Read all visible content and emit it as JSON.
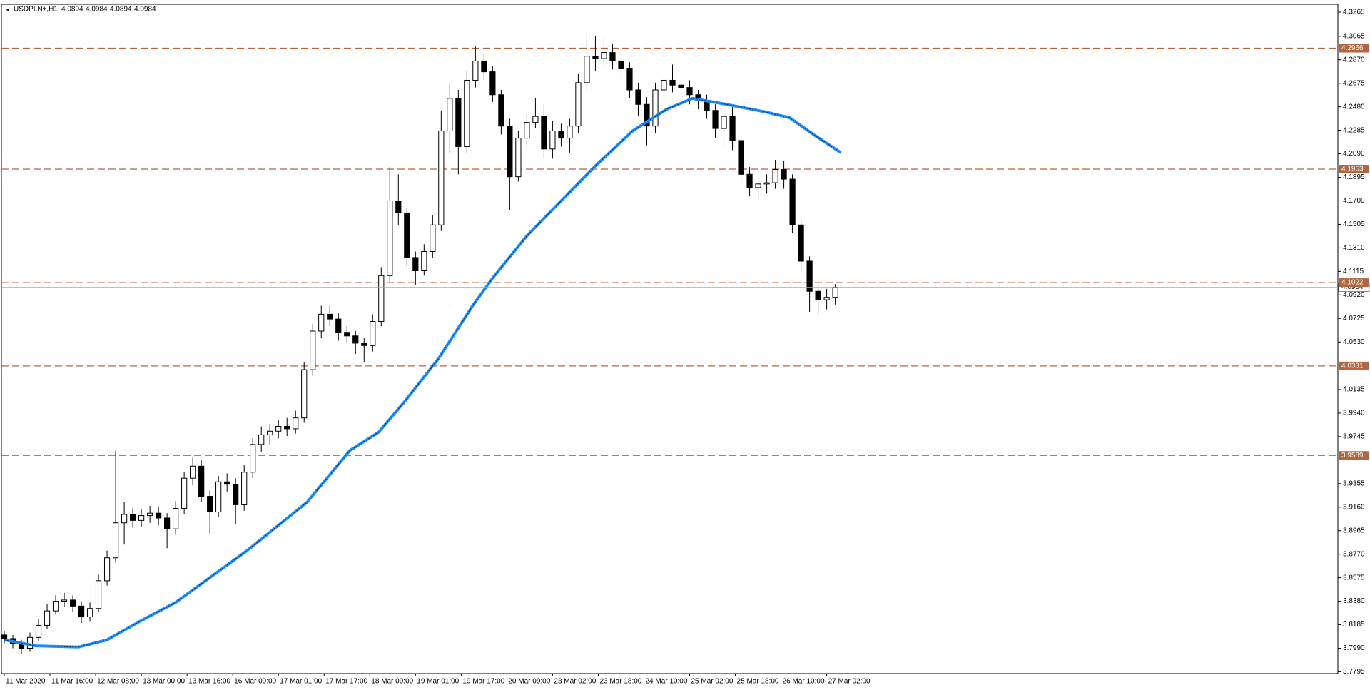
{
  "chart_data": {
    "type": "candlestick",
    "symbol": "USDPLN+,H1",
    "header_ohlc": [
      4.0894,
      4.0984,
      4.0894,
      4.0984
    ],
    "xlim": [
      -1,
      467
    ],
    "ylim": [
      3.778,
      4.333
    ],
    "xticks": [
      {
        "value": 0,
        "label": "11 Mar 2020"
      },
      {
        "value": 16,
        "label": "11 Mar 16:00"
      },
      {
        "value": 32,
        "label": "12 Mar 08:00"
      },
      {
        "value": 48,
        "label": "13 Mar 00:00"
      },
      {
        "value": 64,
        "label": "13 Mar 16:00"
      },
      {
        "value": 80,
        "label": "16 Mar 09:00"
      },
      {
        "value": 96,
        "label": "17 Mar 01:00"
      },
      {
        "value": 112,
        "label": "17 Mar 17:00"
      },
      {
        "value": 128,
        "label": "18 Mar 09:00"
      },
      {
        "value": 144,
        "label": "19 Mar 01:00"
      },
      {
        "value": 160,
        "label": "19 Mar 17:00"
      },
      {
        "value": 176,
        "label": "20 Mar 09:00"
      },
      {
        "value": 192,
        "label": "23 Mar 02:00"
      },
      {
        "value": 208,
        "label": "23 Mar 18:00"
      },
      {
        "value": 224,
        "label": "24 Mar 10:00"
      },
      {
        "value": 240,
        "label": "25 Mar 02:00"
      },
      {
        "value": 256,
        "label": "25 Mar 18:00"
      },
      {
        "value": 272,
        "label": "26 Mar 10:00"
      },
      {
        "value": 288,
        "label": "27 Mar 02:00"
      }
    ],
    "yticks": [
      4.3265,
      4.3065,
      {
        "value": 4.287,
        "label": "4.2870"
      },
      4.2675,
      {
        "value": 4.248,
        "label": "4.2480"
      },
      4.2285,
      {
        "value": 4.209,
        "label": "4.2090"
      },
      4.1895,
      {
        "value": 4.17,
        "label": "4.1700"
      },
      4.1505,
      {
        "value": 4.131,
        "label": "4.1310"
      },
      4.1115,
      {
        "value": 4.092,
        "label": "4.0920"
      },
      4.0725,
      {
        "value": 4.053,
        "label": "4.0530"
      },
      4.0135,
      {
        "value": 3.994,
        "label": "3.9940"
      },
      3.9745,
      3.9355,
      {
        "value": 3.916,
        "label": "3.9160"
      },
      3.8965,
      {
        "value": 3.877,
        "label": "3.8770"
      },
      3.8575,
      {
        "value": 3.838,
        "label": "3.8380"
      },
      3.8185,
      {
        "value": 3.799,
        "label": "3.7990"
      },
      3.7795
    ],
    "levels": [
      4.2966,
      4.1963,
      4.1022,
      4.0331,
      3.9589
    ],
    "level_color": "#b5653d",
    "bid": 4.0984,
    "up_color": "#ffffff",
    "down_color": "#000000",
    "x": [
      0,
      3,
      6,
      9,
      12,
      15,
      18,
      21,
      24,
      27,
      30,
      33,
      36,
      39,
      42,
      45,
      48,
      51,
      54,
      57,
      60,
      63,
      66,
      69,
      72,
      75,
      78,
      81,
      84,
      87,
      90,
      93,
      96,
      99,
      102,
      105,
      108,
      111,
      114,
      117,
      120,
      123,
      126,
      129,
      132,
      135,
      138,
      141,
      144,
      147,
      150,
      153,
      156,
      159,
      162,
      165,
      168,
      171,
      174,
      177,
      180,
      183,
      186,
      189,
      192,
      195,
      198,
      201,
      204,
      207,
      210,
      213,
      216,
      219,
      222,
      225,
      228,
      231,
      234,
      237,
      240,
      243,
      246,
      249,
      252,
      255,
      258,
      261,
      264,
      267,
      270,
      273,
      276,
      279,
      282,
      285,
      288,
      291
    ],
    "open": [
      3.81,
      3.807,
      3.803,
      3.799,
      3.808,
      3.818,
      3.83,
      3.838,
      3.839,
      3.834,
      3.825,
      3.832,
      3.855,
      3.874,
      3.903,
      3.91,
      3.905,
      3.909,
      3.911,
      3.907,
      3.898,
      3.915,
      3.94,
      3.95,
      3.925,
      3.912,
      3.937,
      3.935,
      3.918,
      3.945,
      3.968,
      3.976,
      3.979,
      3.983,
      3.981,
      3.99,
      4.03,
      4.062,
      4.076,
      4.072,
      4.061,
      4.058,
      4.052,
      4.05,
      4.07,
      4.108,
      4.17,
      4.16,
      4.123,
      4.112,
      4.128,
      4.15,
      4.228,
      4.255,
      4.215,
      4.27,
      4.286,
      4.277,
      4.258,
      4.232,
      4.19,
      4.222,
      4.235,
      4.24,
      4.213,
      4.228,
      4.222,
      4.232,
      4.268,
      4.29,
      4.288,
      4.293,
      4.286,
      4.28,
      4.262,
      4.25,
      4.232,
      4.262,
      4.27,
      4.266,
      4.264,
      4.258,
      4.253,
      4.245,
      4.23,
      4.24,
      4.22,
      4.192,
      4.181,
      4.184,
      4.185,
      4.196,
      4.188,
      4.15,
      4.12,
      4.095,
      4.088,
      4.09
    ],
    "high": [
      3.813,
      3.81,
      3.806,
      3.812,
      3.823,
      3.836,
      3.843,
      3.845,
      3.843,
      3.838,
      3.837,
      3.86,
      3.88,
      3.963,
      3.92,
      3.915,
      3.914,
      3.917,
      3.916,
      3.911,
      3.921,
      3.945,
      3.957,
      3.955,
      3.93,
      3.942,
      3.944,
      3.94,
      3.951,
      3.973,
      3.983,
      3.985,
      3.988,
      3.99,
      3.996,
      4.036,
      4.068,
      4.083,
      4.083,
      4.077,
      4.066,
      4.062,
      4.056,
      4.076,
      4.115,
      4.198,
      4.192,
      4.164,
      4.128,
      4.134,
      4.158,
      4.245,
      4.268,
      4.262,
      4.278,
      4.298,
      4.292,
      4.282,
      4.262,
      4.238,
      4.228,
      4.242,
      4.255,
      4.25,
      4.236,
      4.234,
      4.238,
      4.275,
      4.31,
      4.307,
      4.306,
      4.3,
      4.292,
      4.285,
      4.268,
      4.256,
      4.268,
      4.281,
      4.283,
      4.272,
      4.27,
      4.262,
      4.258,
      4.25,
      4.245,
      4.248,
      4.225,
      4.198,
      4.19,
      4.192,
      4.204,
      4.203,
      4.192,
      4.155,
      4.124,
      4.1,
      4.097,
      4.101
    ],
    "low": [
      3.803,
      3.799,
      3.794,
      3.796,
      3.805,
      3.815,
      3.827,
      3.833,
      3.829,
      3.82,
      3.821,
      3.829,
      3.851,
      3.87,
      3.885,
      3.899,
      3.9,
      3.903,
      3.901,
      3.882,
      3.893,
      3.91,
      3.934,
      3.92,
      3.894,
      3.908,
      3.929,
      3.902,
      3.913,
      3.94,
      3.962,
      3.968,
      3.973,
      3.975,
      3.977,
      3.986,
      4.025,
      4.056,
      4.066,
      4.054,
      4.052,
      4.043,
      4.036,
      4.045,
      4.066,
      4.103,
      4.15,
      4.116,
      4.1,
      4.108,
      4.123,
      4.145,
      4.21,
      4.192,
      4.21,
      4.264,
      4.27,
      4.252,
      4.225,
      4.162,
      4.186,
      4.216,
      4.23,
      4.205,
      4.205,
      4.215,
      4.21,
      4.226,
      4.262,
      4.278,
      4.282,
      4.279,
      4.272,
      4.255,
      4.24,
      4.216,
      4.226,
      4.255,
      4.26,
      4.256,
      4.25,
      4.246,
      4.238,
      4.222,
      4.214,
      4.212,
      4.185,
      4.174,
      4.172,
      4.176,
      4.18,
      4.18,
      4.143,
      4.112,
      4.078,
      4.075,
      4.08,
      4.084
    ],
    "close": [
      3.807,
      3.803,
      3.799,
      3.808,
      3.818,
      3.83,
      3.838,
      3.839,
      3.834,
      3.825,
      3.832,
      3.855,
      3.874,
      3.903,
      3.91,
      3.905,
      3.909,
      3.911,
      3.907,
      3.898,
      3.915,
      3.94,
      3.95,
      3.925,
      3.912,
      3.937,
      3.935,
      3.918,
      3.945,
      3.968,
      3.976,
      3.979,
      3.983,
      3.981,
      3.99,
      4.03,
      4.062,
      4.076,
      4.072,
      4.061,
      4.058,
      4.052,
      4.05,
      4.07,
      4.108,
      4.17,
      4.16,
      4.123,
      4.112,
      4.128,
      4.15,
      4.228,
      4.255,
      4.215,
      4.27,
      4.286,
      4.277,
      4.258,
      4.232,
      4.19,
      4.222,
      4.235,
      4.24,
      4.213,
      4.228,
      4.222,
      4.232,
      4.268,
      4.29,
      4.288,
      4.293,
      4.286,
      4.28,
      4.262,
      4.25,
      4.232,
      4.262,
      4.27,
      4.266,
      4.264,
      4.258,
      4.253,
      4.245,
      4.23,
      4.24,
      4.22,
      4.192,
      4.181,
      4.184,
      4.185,
      4.196,
      4.188,
      4.15,
      4.12,
      4.095,
      4.088,
      4.09,
      4.0984
    ],
    "ma": {
      "color": "#1e90ff",
      "x": [
        0,
        11,
        26,
        36,
        48,
        60,
        85,
        106,
        121,
        131,
        140,
        152,
        164,
        171,
        183,
        195,
        207,
        220,
        232,
        241,
        253,
        266,
        275,
        284,
        293
      ],
      "values": [
        3.806,
        3.801,
        3.8,
        3.806,
        3.822,
        3.837,
        3.88,
        3.92,
        3.963,
        3.978,
        4.003,
        4.039,
        4.083,
        4.106,
        4.141,
        4.17,
        4.199,
        4.228,
        4.246,
        4.255,
        4.25,
        4.244,
        4.239,
        4.224,
        4.21
      ]
    }
  }
}
